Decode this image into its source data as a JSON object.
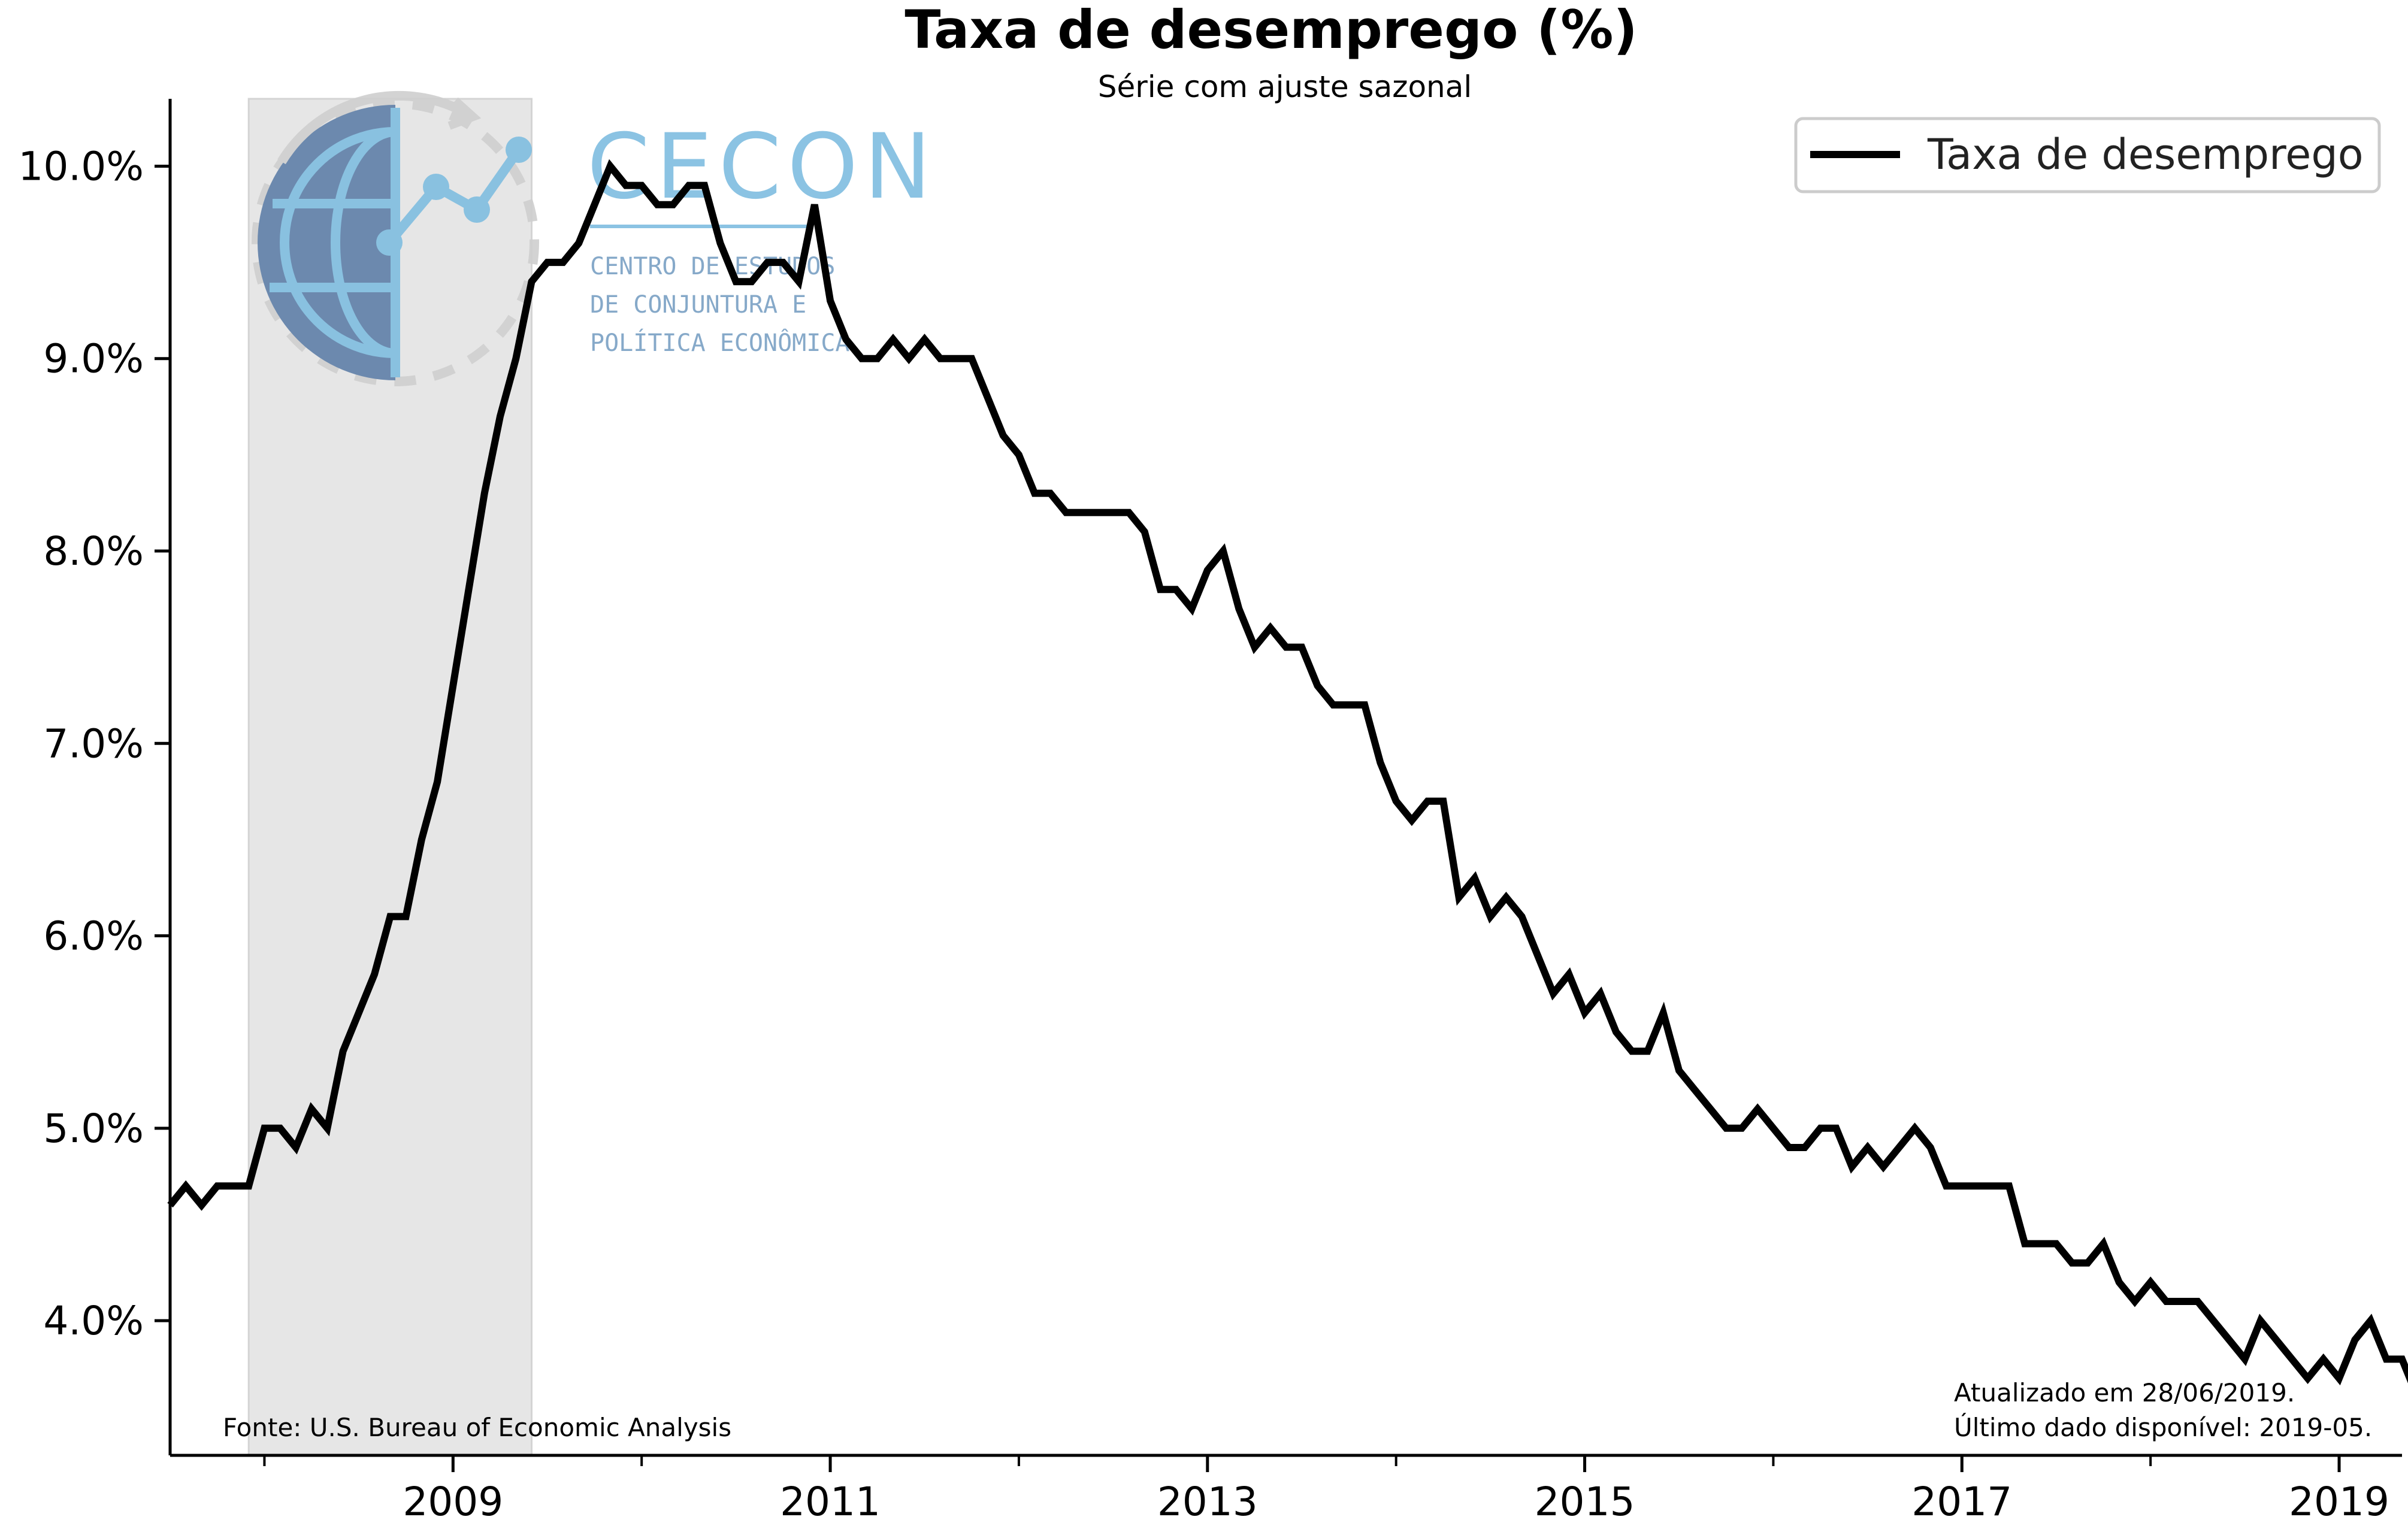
{
  "chart_data": {
    "type": "line",
    "title": "Taxa de desemprego (%)",
    "subtitle": "Série com ajuste sazonal",
    "xlabel": "",
    "ylabel": "",
    "x_start": "2007-07",
    "x_end": "2019-05",
    "xlim": [
      "2007-07",
      "2019-05"
    ],
    "ylim": [
      3.3,
      10.35
    ],
    "y_ticks": [
      4.0,
      5.0,
      6.0,
      7.0,
      8.0,
      9.0,
      10.0
    ],
    "y_tick_labels": [
      "4.0%",
      "5.0%",
      "6.0%",
      "7.0%",
      "8.0%",
      "9.0%",
      "10.0%"
    ],
    "x_major_ticks": [
      "2009-01",
      "2011-01",
      "2013-01",
      "2015-01",
      "2017-01",
      "2019-01"
    ],
    "x_major_labels": [
      "2009",
      "2011",
      "2013",
      "2015",
      "2017",
      "2019"
    ],
    "x_minor_ticks": [
      "2008-01",
      "2010-01",
      "2012-01",
      "2014-01",
      "2016-01",
      "2018-01"
    ],
    "recession": {
      "start": "2007-12",
      "end": "2009-06",
      "color": "#e6e6e6"
    },
    "grid": false,
    "legend": {
      "position": "top-right",
      "entries": [
        "Taxa de desemprego"
      ]
    },
    "series": [
      {
        "name": "Taxa de desemprego",
        "color": "#000000",
        "values": [
          4.6,
          4.7,
          4.6,
          4.7,
          4.7,
          4.7,
          5.0,
          5.0,
          4.9,
          5.1,
          5.0,
          5.4,
          5.6,
          5.8,
          6.1,
          6.1,
          6.5,
          6.8,
          7.3,
          7.8,
          8.3,
          8.7,
          9.0,
          9.4,
          9.5,
          9.5,
          9.6,
          9.8,
          10.0,
          9.9,
          9.9,
          9.8,
          9.8,
          9.9,
          9.9,
          9.6,
          9.4,
          9.4,
          9.5,
          9.5,
          9.4,
          9.8,
          9.3,
          9.1,
          9.0,
          9.0,
          9.1,
          9.0,
          9.1,
          9.0,
          9.0,
          9.0,
          8.8,
          8.6,
          8.5,
          8.3,
          8.3,
          8.2,
          8.2,
          8.2,
          8.2,
          8.2,
          8.1,
          7.8,
          7.8,
          7.7,
          7.9,
          8.0,
          7.7,
          7.5,
          7.6,
          7.5,
          7.5,
          7.3,
          7.2,
          7.2,
          7.2,
          6.9,
          6.7,
          6.6,
          6.7,
          6.7,
          6.2,
          6.3,
          6.1,
          6.2,
          6.1,
          5.9,
          5.7,
          5.8,
          5.6,
          5.7,
          5.5,
          5.4,
          5.4,
          5.6,
          5.3,
          5.2,
          5.1,
          5.0,
          5.0,
          5.1,
          5.0,
          4.9,
          4.9,
          5.0,
          5.0,
          4.8,
          4.9,
          4.8,
          4.9,
          5.0,
          4.9,
          4.7,
          4.7,
          4.7,
          4.7,
          4.7,
          4.4,
          4.4,
          4.4,
          4.3,
          4.3,
          4.4,
          4.2,
          4.1,
          4.2,
          4.1,
          4.1,
          4.1,
          4.0,
          3.9,
          3.8,
          4.0,
          3.9,
          3.8,
          3.7,
          3.8,
          3.7,
          3.9,
          4.0,
          3.8,
          3.8,
          3.6,
          3.6
        ]
      }
    ]
  },
  "annotations": {
    "source": "Fonte: U.S. Bureau of Economic Analysis",
    "updated": "Atualizado em 28/06/2019.",
    "last_data": "Último dado disponível: 2019-05."
  },
  "logo": {
    "name": "CECON",
    "line1": "CENTRO DE ESTUDOS",
    "line2": "DE CONJUNTURA E",
    "line3": "POLÍTICA ECONÔMICA"
  }
}
